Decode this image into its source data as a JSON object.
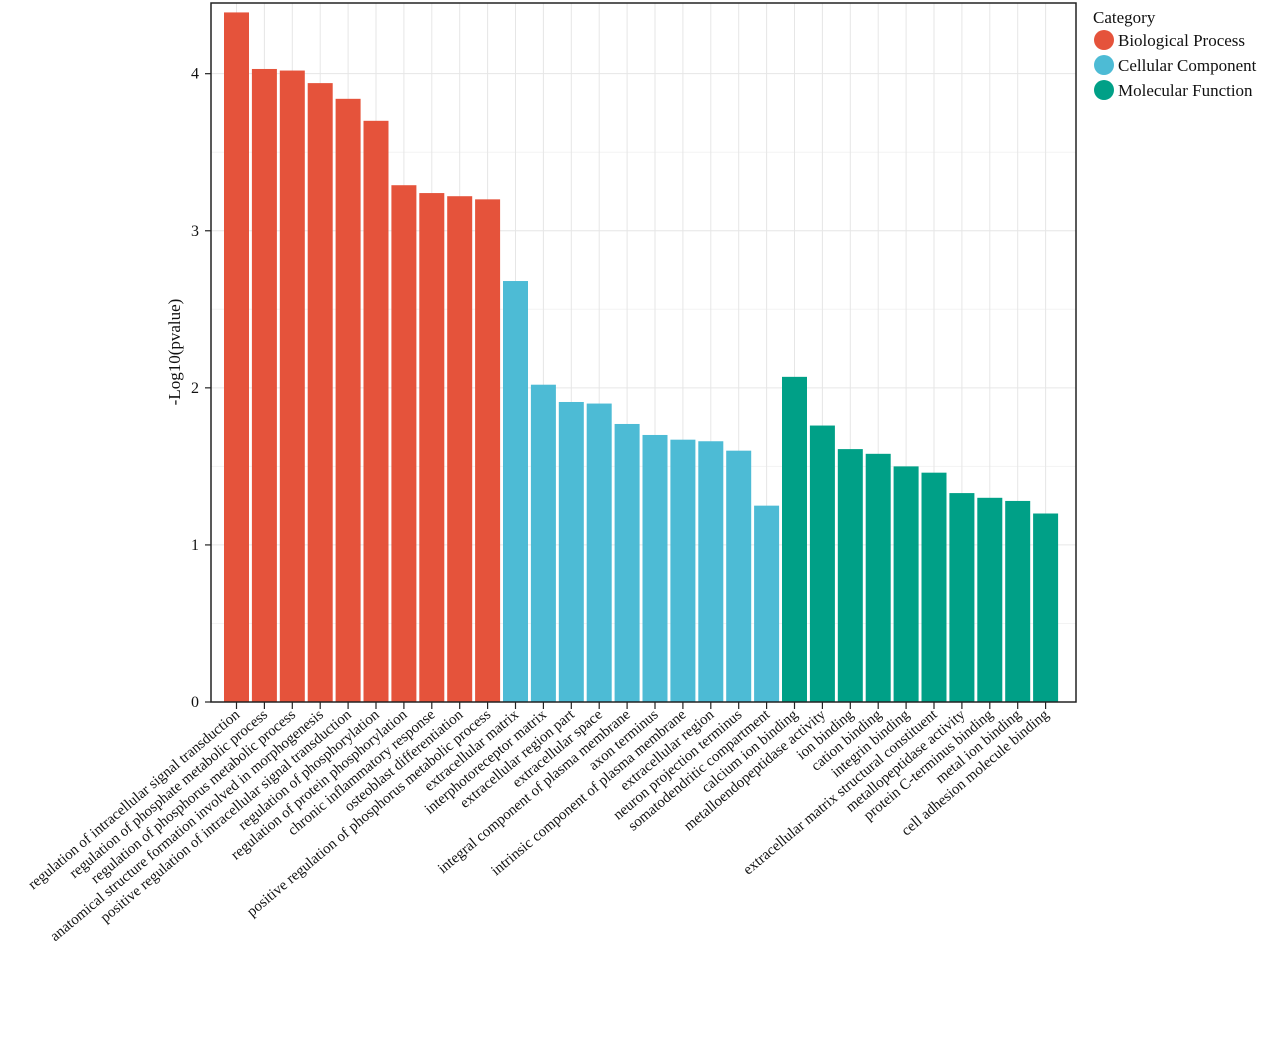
{
  "chart_data": {
    "type": "bar",
    "ylabel": "-Log10(pvalue)",
    "ylim": [
      0,
      4.45
    ],
    "yticks": [
      0,
      1,
      2,
      3,
      4
    ],
    "grid": true,
    "legend": {
      "title": "Category",
      "placement": "top-right",
      "entries": [
        {
          "name": "Biological Process",
          "color": "#E5533B"
        },
        {
          "name": "Cellular Component",
          "color": "#4DBBD5"
        },
        {
          "name": "Molecular Function",
          "color": "#00A087"
        }
      ]
    },
    "categories": [
      "regulation of intracellular signal transduction",
      "regulation of phosphate metabolic process",
      "regulation of phosphorus metabolic process",
      "anatomical structure formation involved in morphogenesis",
      "positive regulation of intracellular signal transduction",
      "regulation of phosphorylation",
      "regulation of protein phosphorylation",
      "chronic inflammatory response",
      "osteoblast differentiation",
      "positive regulation of phosphorus metabolic process",
      "extracellular matrix",
      "interphotoreceptor matrix",
      "extracellular region part",
      "extracellular space",
      "integral component of plasma membrane",
      "axon terminus",
      "intrinsic component of plasma membrane",
      "extracellular region",
      "neuron projection terminus",
      "somatodendritic compartment",
      "calcium ion binding",
      "metalloendopeptidase activity",
      "ion binding",
      "cation binding",
      "integrin binding",
      "extracellular matrix structural constituent",
      "metallopeptidase activity",
      "protein C-terminus binding",
      "metal ion binding",
      "cell adhesion molecule binding"
    ],
    "values": [
      4.39,
      4.03,
      4.02,
      3.94,
      3.84,
      3.7,
      3.29,
      3.24,
      3.22,
      3.2,
      2.68,
      2.02,
      1.91,
      1.9,
      1.77,
      1.7,
      1.67,
      1.66,
      1.6,
      1.25,
      2.07,
      1.76,
      1.61,
      1.58,
      1.5,
      1.46,
      1.33,
      1.3,
      1.28,
      1.2
    ],
    "groups": [
      0,
      0,
      0,
      0,
      0,
      0,
      0,
      0,
      0,
      0,
      1,
      1,
      1,
      1,
      1,
      1,
      1,
      1,
      1,
      1,
      2,
      2,
      2,
      2,
      2,
      2,
      2,
      2,
      2,
      2
    ]
  }
}
